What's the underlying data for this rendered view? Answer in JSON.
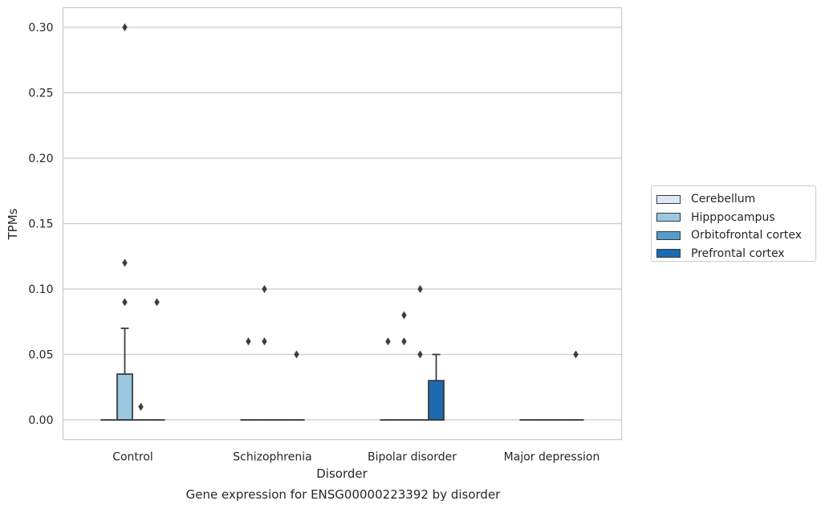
{
  "caption": "Gene expression for ENSG00000223392 by disorder",
  "chart_data": {
    "type": "box",
    "title": "",
    "xlabel": "Disorder",
    "ylabel": "TPMs",
    "ylim": [
      -0.015,
      0.315
    ],
    "yticks": [
      "0.00",
      "0.05",
      "0.10",
      "0.15",
      "0.20",
      "0.25",
      "0.30"
    ],
    "ytick_values": [
      0,
      0.05,
      0.1,
      0.15,
      0.2,
      0.25,
      0.3
    ],
    "grid": "horizontal",
    "legend_position": "right",
    "categories": [
      "Control",
      "Schizophrenia",
      "Bipolar disorder",
      "Major depression"
    ],
    "series": [
      {
        "name": "Cerebellum",
        "color": "#dbe9f6",
        "boxes": [
          {
            "q1": 0,
            "median": 0,
            "q3": 0,
            "whisker_low": 0,
            "whisker_high": 0,
            "outliers": []
          },
          {
            "q1": 0,
            "median": 0,
            "q3": 0,
            "whisker_low": 0,
            "whisker_high": 0,
            "outliers": [
              0.06
            ]
          },
          {
            "q1": 0,
            "median": 0,
            "q3": 0,
            "whisker_low": 0,
            "whisker_high": 0,
            "outliers": [
              0.06
            ]
          },
          {
            "q1": 0,
            "median": 0,
            "q3": 0,
            "whisker_low": 0,
            "whisker_high": 0,
            "outliers": []
          }
        ]
      },
      {
        "name": "Hipppocampus",
        "color": "#9ac8e0",
        "boxes": [
          {
            "q1": 0,
            "median": 0,
            "q3": 0.035,
            "whisker_low": 0,
            "whisker_high": 0.07,
            "outliers": [
              0.09,
              0.12,
              0.3
            ]
          },
          {
            "q1": 0,
            "median": 0,
            "q3": 0,
            "whisker_low": 0,
            "whisker_high": 0,
            "outliers": [
              0.06,
              0.1
            ]
          },
          {
            "q1": 0,
            "median": 0,
            "q3": 0,
            "whisker_low": 0,
            "whisker_high": 0,
            "outliers": [
              0.06,
              0.08
            ]
          },
          {
            "q1": 0,
            "median": 0,
            "q3": 0,
            "whisker_low": 0,
            "whisker_high": 0,
            "outliers": []
          }
        ]
      },
      {
        "name": "Orbitofrontal cortex",
        "color": "#529dcc",
        "boxes": [
          {
            "q1": 0,
            "median": 0,
            "q3": 0,
            "whisker_low": 0,
            "whisker_high": 0,
            "outliers": [
              0.01
            ]
          },
          {
            "q1": 0,
            "median": 0,
            "q3": 0,
            "whisker_low": 0,
            "whisker_high": 0,
            "outliers": []
          },
          {
            "q1": 0,
            "median": 0,
            "q3": 0,
            "whisker_low": 0,
            "whisker_high": 0,
            "outliers": [
              0.05,
              0.1
            ]
          },
          {
            "q1": 0,
            "median": 0,
            "q3": 0,
            "whisker_low": 0,
            "whisker_high": 0,
            "outliers": []
          }
        ]
      },
      {
        "name": "Prefrontal cortex",
        "color": "#1b69af",
        "boxes": [
          {
            "q1": 0,
            "median": 0,
            "q3": 0,
            "whisker_low": 0,
            "whisker_high": 0,
            "outliers": [
              0.09
            ]
          },
          {
            "q1": 0,
            "median": 0,
            "q3": 0,
            "whisker_low": 0,
            "whisker_high": 0,
            "outliers": [
              0.05
            ]
          },
          {
            "q1": 0,
            "median": 0,
            "q3": 0.03,
            "whisker_low": 0,
            "whisker_high": 0.05,
            "outliers": []
          },
          {
            "q1": 0,
            "median": 0,
            "q3": 0,
            "whisker_low": 0,
            "whisker_high": 0,
            "outliers": [
              0.05
            ]
          }
        ]
      }
    ]
  }
}
